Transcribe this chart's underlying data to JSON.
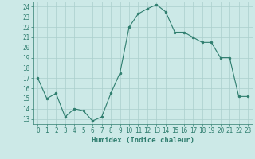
{
  "x": [
    0,
    1,
    2,
    3,
    4,
    5,
    6,
    7,
    8,
    9,
    10,
    11,
    12,
    13,
    14,
    15,
    16,
    17,
    18,
    19,
    20,
    21,
    22,
    23
  ],
  "y": [
    17.0,
    15.0,
    15.5,
    13.2,
    14.0,
    13.8,
    12.8,
    13.2,
    15.5,
    17.5,
    22.0,
    23.3,
    23.8,
    24.2,
    23.5,
    21.5,
    21.5,
    21.0,
    20.5,
    20.5,
    19.0,
    19.0,
    15.2,
    15.2
  ],
  "line_color": "#2e7d6e",
  "marker": "o",
  "marker_size": 2,
  "bg_color": "#cce9e7",
  "grid_color": "#aacfcc",
  "xlabel": "Humidex (Indice chaleur)",
  "xlim": [
    -0.5,
    23.5
  ],
  "ylim": [
    12.5,
    24.5
  ],
  "yticks": [
    13,
    14,
    15,
    16,
    17,
    18,
    19,
    20,
    21,
    22,
    23,
    24
  ],
  "xticks": [
    0,
    1,
    2,
    3,
    4,
    5,
    6,
    7,
    8,
    9,
    10,
    11,
    12,
    13,
    14,
    15,
    16,
    17,
    18,
    19,
    20,
    21,
    22,
    23
  ],
  "tick_color": "#2e7d6e",
  "label_color": "#2e7d6e",
  "label_fontsize": 6.5,
  "tick_fontsize": 5.5
}
